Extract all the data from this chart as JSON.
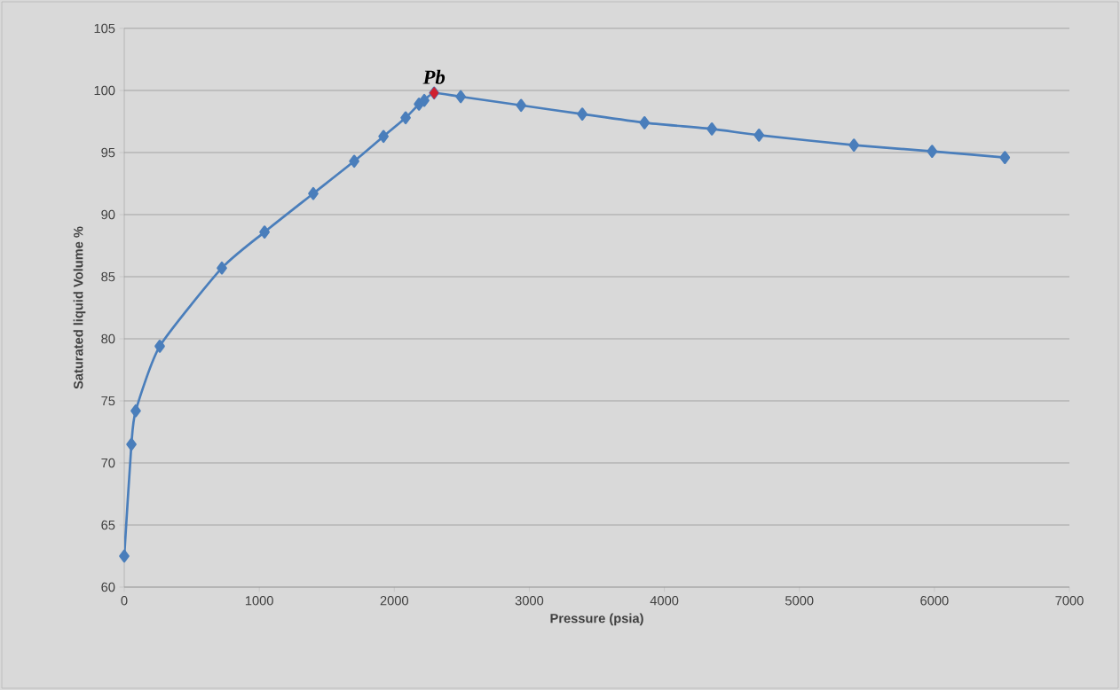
{
  "chart_data": {
    "type": "line",
    "xlabel": "Pressure (psia)",
    "ylabel": "Saturated liquid Volume %",
    "xlim": [
      0,
      7000
    ],
    "xticks": [
      0,
      1000,
      2000,
      3000,
      4000,
      5000,
      6000,
      7000
    ],
    "ylim": [
      60,
      105
    ],
    "yticks": [
      60,
      65,
      70,
      75,
      80,
      85,
      90,
      95,
      100,
      105
    ],
    "grid": "y",
    "marker": "diamond",
    "series": [
      {
        "color": "#4a7ebb",
        "x": [
          0,
          53,
          85,
          263,
          723,
          1039,
          1400,
          1703,
          1920,
          2084,
          2183,
          2222,
          2295,
          2492,
          2939,
          3392,
          3853,
          4352,
          4701,
          5404,
          5983,
          6522
        ],
        "values": [
          62.5,
          71.5,
          74.2,
          79.4,
          85.7,
          88.6,
          91.7,
          94.3,
          96.3,
          97.8,
          98.9,
          99.2,
          99.8,
          99.5,
          98.8,
          98.1,
          97.4,
          96.9,
          96.4,
          95.6,
          95.1,
          94.6
        ]
      },
      {
        "type": "scatter",
        "color": "#d02030",
        "x": [
          2295
        ],
        "values": [
          99.8
        ]
      }
    ],
    "annotations": [
      {
        "text": "Pb",
        "x": 2295,
        "y": 99.8
      }
    ]
  }
}
